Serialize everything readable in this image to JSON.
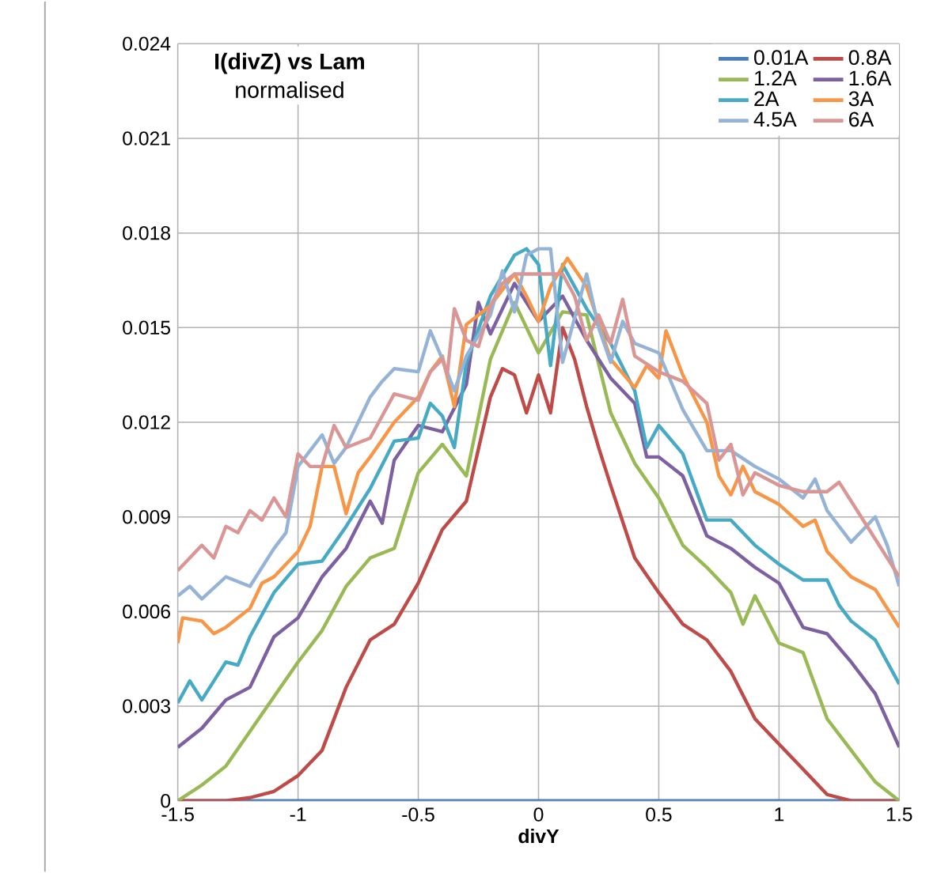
{
  "chart_data": {
    "type": "line",
    "title": "I(divZ) vs Lam",
    "subtitle": "normalised",
    "xlabel": "divY",
    "xlim": [
      -1.5,
      1.5
    ],
    "xticks": [
      -1.5,
      -1,
      -0.5,
      0,
      0.5,
      1,
      1.5
    ],
    "ylim": [
      0,
      0.024
    ],
    "yticks": [
      0,
      0.003,
      0.006,
      0.009,
      0.012,
      0.015,
      0.018,
      0.021,
      0.024
    ],
    "grid": true,
    "legend": "top right",
    "marker": "none",
    "line_style": "solid",
    "series": [
      {
        "name": "0.01A",
        "color": "#4a7ebb",
        "x": [
          -1.5,
          0,
          1.5
        ],
        "values": [
          0,
          0,
          0
        ]
      },
      {
        "name": "0.8A",
        "color": "#be4b48",
        "x": [
          -1.5,
          -1.4,
          -1.3,
          -1.2,
          -1.1,
          -1.0,
          -0.9,
          -0.8,
          -0.7,
          -0.6,
          -0.5,
          -0.4,
          -0.3,
          -0.2,
          -0.15,
          -0.1,
          -0.05,
          0,
          0.05,
          0.1,
          0.15,
          0.2,
          0.25,
          0.3,
          0.4,
          0.5,
          0.6,
          0.7,
          0.8,
          0.9,
          1.0,
          1.1,
          1.2,
          1.3,
          1.4,
          1.5
        ],
        "values": [
          0,
          0,
          0,
          0.0001,
          0.0003,
          0.0008,
          0.0016,
          0.0036,
          0.0051,
          0.0056,
          0.0069,
          0.0086,
          0.0095,
          0.0128,
          0.0137,
          0.0135,
          0.0123,
          0.0135,
          0.0123,
          0.015,
          0.014,
          0.0125,
          0.0112,
          0.01,
          0.0077,
          0.0066,
          0.0056,
          0.0051,
          0.0041,
          0.0026,
          0.0018,
          0.001,
          0.0002,
          0,
          0,
          0
        ]
      },
      {
        "name": "1.2A",
        "color": "#98b954",
        "x": [
          -1.5,
          -1.4,
          -1.3,
          -1.2,
          -1.1,
          -1.0,
          -0.9,
          -0.8,
          -0.7,
          -0.6,
          -0.5,
          -0.4,
          -0.3,
          -0.2,
          -0.1,
          0,
          0.1,
          0.2,
          0.3,
          0.4,
          0.5,
          0.6,
          0.7,
          0.8,
          0.85,
          0.9,
          1.0,
          1.1,
          1.2,
          1.3,
          1.4,
          1.5
        ],
        "values": [
          0,
          0.0005,
          0.0011,
          0.0022,
          0.0033,
          0.0044,
          0.0054,
          0.0068,
          0.0077,
          0.008,
          0.0104,
          0.0113,
          0.0103,
          0.014,
          0.0158,
          0.0142,
          0.0155,
          0.0154,
          0.0123,
          0.0107,
          0.0096,
          0.0081,
          0.0074,
          0.0066,
          0.0056,
          0.0065,
          0.005,
          0.0047,
          0.0026,
          0.0016,
          0.0006,
          0
        ]
      },
      {
        "name": "1.6A",
        "color": "#7d60a0",
        "x": [
          -1.5,
          -1.4,
          -1.3,
          -1.2,
          -1.1,
          -1.0,
          -0.9,
          -0.8,
          -0.7,
          -0.65,
          -0.6,
          -0.5,
          -0.4,
          -0.3,
          -0.25,
          -0.2,
          -0.1,
          0,
          0.1,
          0.2,
          0.3,
          0.4,
          0.45,
          0.5,
          0.6,
          0.7,
          0.8,
          0.9,
          1.0,
          1.1,
          1.2,
          1.3,
          1.4,
          1.5
        ],
        "values": [
          0.0017,
          0.0023,
          0.0032,
          0.0036,
          0.0052,
          0.0058,
          0.0071,
          0.008,
          0.0095,
          0.0088,
          0.0108,
          0.0119,
          0.0117,
          0.0132,
          0.0158,
          0.0148,
          0.0164,
          0.0152,
          0.016,
          0.0146,
          0.0134,
          0.0126,
          0.0109,
          0.0109,
          0.0103,
          0.0084,
          0.008,
          0.0074,
          0.0069,
          0.0055,
          0.0053,
          0.0044,
          0.0034,
          0.0017
        ]
      },
      {
        "name": "2A",
        "color": "#46aac5",
        "x": [
          -1.5,
          -1.45,
          -1.4,
          -1.3,
          -1.25,
          -1.2,
          -1.1,
          -1.0,
          -0.9,
          -0.8,
          -0.7,
          -0.6,
          -0.5,
          -0.45,
          -0.4,
          -0.35,
          -0.3,
          -0.2,
          -0.1,
          -0.05,
          0,
          0.05,
          0.1,
          0.2,
          0.3,
          0.4,
          0.45,
          0.5,
          0.6,
          0.7,
          0.8,
          0.9,
          1.0,
          1.1,
          1.2,
          1.25,
          1.3,
          1.4,
          1.5
        ],
        "values": [
          0.0031,
          0.0038,
          0.0032,
          0.0044,
          0.0043,
          0.0052,
          0.0066,
          0.0075,
          0.0076,
          0.0087,
          0.0099,
          0.0114,
          0.0115,
          0.0126,
          0.0122,
          0.0112,
          0.0139,
          0.016,
          0.0173,
          0.0175,
          0.017,
          0.0138,
          0.017,
          0.0156,
          0.0145,
          0.013,
          0.0112,
          0.0119,
          0.011,
          0.0089,
          0.0089,
          0.0081,
          0.0075,
          0.007,
          0.007,
          0.0062,
          0.0057,
          0.0051,
          0.0037
        ]
      },
      {
        "name": "3A",
        "color": "#f79646",
        "x": [
          -1.5,
          -1.48,
          -1.4,
          -1.35,
          -1.3,
          -1.2,
          -1.15,
          -1.1,
          -1.0,
          -0.95,
          -0.9,
          -0.85,
          -0.8,
          -0.75,
          -0.7,
          -0.6,
          -0.5,
          -0.45,
          -0.4,
          -0.35,
          -0.3,
          -0.2,
          -0.1,
          -0.05,
          0,
          0.05,
          0.12,
          0.2,
          0.3,
          0.4,
          0.45,
          0.5,
          0.53,
          0.6,
          0.7,
          0.75,
          0.8,
          0.85,
          0.9,
          1.0,
          1.1,
          1.15,
          1.2,
          1.3,
          1.4,
          1.5
        ],
        "values": [
          0.005,
          0.0058,
          0.0057,
          0.0053,
          0.0055,
          0.0061,
          0.0069,
          0.0071,
          0.0079,
          0.0087,
          0.0106,
          0.0106,
          0.0091,
          0.0104,
          0.0109,
          0.012,
          0.0128,
          0.0136,
          0.0141,
          0.0125,
          0.0151,
          0.0157,
          0.0167,
          0.016,
          0.0152,
          0.0163,
          0.0172,
          0.0163,
          0.014,
          0.0131,
          0.0138,
          0.0134,
          0.0149,
          0.0135,
          0.012,
          0.0103,
          0.0097,
          0.0106,
          0.0098,
          0.0094,
          0.0087,
          0.0089,
          0.0079,
          0.0071,
          0.0067,
          0.0055
        ]
      },
      {
        "name": "4.5A",
        "color": "#95b3d7",
        "x": [
          -1.5,
          -1.45,
          -1.4,
          -1.3,
          -1.2,
          -1.1,
          -1.05,
          -1.0,
          -0.9,
          -0.85,
          -0.8,
          -0.7,
          -0.65,
          -0.6,
          -0.5,
          -0.45,
          -0.4,
          -0.35,
          -0.3,
          -0.2,
          -0.15,
          -0.1,
          -0.05,
          0,
          0.05,
          0.1,
          0.2,
          0.25,
          0.3,
          0.35,
          0.4,
          0.5,
          0.6,
          0.7,
          0.8,
          0.9,
          1.0,
          1.1,
          1.15,
          1.2,
          1.3,
          1.4,
          1.45,
          1.5
        ],
        "values": [
          0.0065,
          0.0068,
          0.0064,
          0.0071,
          0.0068,
          0.008,
          0.0085,
          0.0106,
          0.0116,
          0.0107,
          0.0112,
          0.0128,
          0.0133,
          0.0137,
          0.0136,
          0.0149,
          0.014,
          0.013,
          0.0141,
          0.0154,
          0.0168,
          0.0155,
          0.0173,
          0.0175,
          0.0175,
          0.0139,
          0.0167,
          0.015,
          0.0139,
          0.0152,
          0.0145,
          0.0142,
          0.0124,
          0.0111,
          0.0111,
          0.0106,
          0.0102,
          0.0096,
          0.0102,
          0.0092,
          0.0082,
          0.009,
          0.0081,
          0.0068
        ]
      },
      {
        "name": "6A",
        "color": "#d99694",
        "x": [
          -1.5,
          -1.45,
          -1.4,
          -1.35,
          -1.3,
          -1.25,
          -1.2,
          -1.15,
          -1.1,
          -1.05,
          -1.0,
          -0.95,
          -0.9,
          -0.85,
          -0.8,
          -0.7,
          -0.6,
          -0.5,
          -0.45,
          -0.4,
          -0.38,
          -0.35,
          -0.3,
          -0.25,
          -0.2,
          -0.15,
          -0.1,
          0,
          0.05,
          0.1,
          0.15,
          0.2,
          0.25,
          0.3,
          0.35,
          0.4,
          0.5,
          0.6,
          0.7,
          0.75,
          0.8,
          0.85,
          0.9,
          1.0,
          1.1,
          1.2,
          1.25,
          1.3,
          1.4,
          1.5
        ],
        "values": [
          0.0073,
          0.0077,
          0.0081,
          0.0077,
          0.0087,
          0.0085,
          0.0092,
          0.0089,
          0.0096,
          0.009,
          0.011,
          0.0106,
          0.0106,
          0.0119,
          0.0112,
          0.0115,
          0.0129,
          0.0127,
          0.0136,
          0.014,
          0.0135,
          0.0156,
          0.0146,
          0.0144,
          0.0157,
          0.0164,
          0.0167,
          0.0167,
          0.0167,
          0.0167,
          0.016,
          0.0146,
          0.0154,
          0.0145,
          0.0159,
          0.0141,
          0.0136,
          0.0133,
          0.0126,
          0.0108,
          0.0113,
          0.0097,
          0.0104,
          0.01,
          0.0098,
          0.0098,
          0.0101,
          0.0095,
          0.0083,
          0.0071
        ]
      }
    ]
  }
}
